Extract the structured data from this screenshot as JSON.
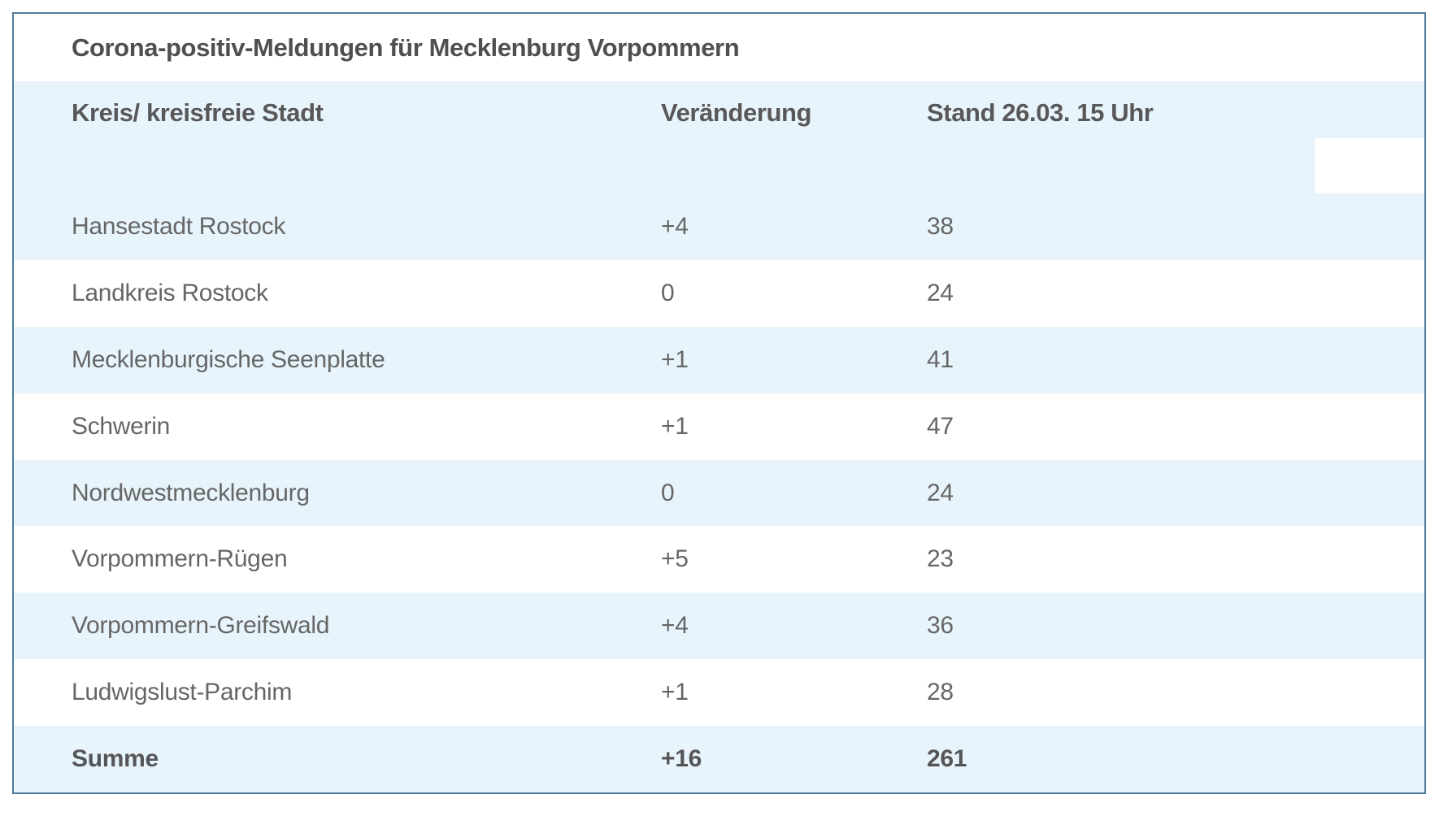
{
  "table": {
    "title": "Corona-positiv-Meldungen für Mecklenburg Vorpommern",
    "columns": {
      "kreis": "Kreis/ kreisfreie Stadt",
      "veraenderung": "Veränderung",
      "stand": "Stand 26.03. 15 Uhr"
    },
    "rows": [
      {
        "kreis": "Hansestadt Rostock",
        "veraenderung": "+4",
        "stand": "38"
      },
      {
        "kreis": "Landkreis Rostock",
        "veraenderung": "0",
        "stand": "24"
      },
      {
        "kreis": "Mecklenburgische Seenplatte",
        "veraenderung": "+1",
        "stand": "41"
      },
      {
        "kreis": "Schwerin",
        "veraenderung": "+1",
        "stand": "47"
      },
      {
        "kreis": "Nordwestmecklenburg",
        "veraenderung": "0",
        "stand": "24"
      },
      {
        "kreis": "Vorpommern-Rügen",
        "veraenderung": "+5",
        "stand": "23"
      },
      {
        "kreis": "Vorpommern-Greifswald",
        "veraenderung": "+4",
        "stand": "36"
      },
      {
        "kreis": "Ludwigslust-Parchim",
        "veraenderung": "+1",
        "stand": "28"
      }
    ],
    "total": {
      "kreis": "Summe",
      "veraenderung": "+16",
      "stand": "261"
    }
  },
  "chart_data": {
    "type": "table",
    "title": "Corona-positiv-Meldungen für Mecklenburg Vorpommern",
    "columns": [
      "Kreis/ kreisfreie Stadt",
      "Veränderung",
      "Stand 26.03. 15 Uhr"
    ],
    "rows": [
      [
        "Hansestadt Rostock",
        "+4",
        38
      ],
      [
        "Landkreis Rostock",
        "0",
        24
      ],
      [
        "Mecklenburgische Seenplatte",
        "+1",
        41
      ],
      [
        "Schwerin",
        "+1",
        47
      ],
      [
        "Nordwestmecklenburg",
        "0",
        24
      ],
      [
        "Vorpommern-Rügen",
        "+5",
        23
      ],
      [
        "Vorpommern-Greifswald",
        "+4",
        36
      ],
      [
        "Ludwigslust-Parchim",
        "+1",
        28
      ]
    ],
    "total_row": [
      "Summe",
      "+16",
      261
    ],
    "layout_hints": {
      "striped": true,
      "stripe_color": "#e8f4fb",
      "header_background": "#e8f4fb",
      "border_color": "#4d7b9e"
    }
  },
  "colors": {
    "border": "#4d7b9e",
    "row_highlight": "#e8f4fb",
    "background": "#ffffff",
    "text_bold": "#4f4f4f",
    "text_regular": "#666666"
  }
}
